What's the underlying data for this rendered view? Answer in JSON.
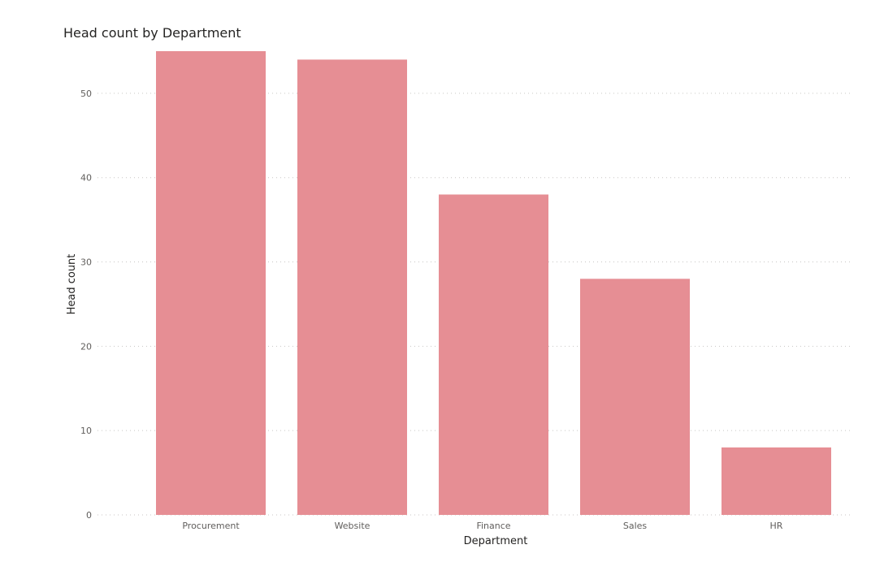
{
  "chart_data": {
    "type": "bar",
    "title": "Head count by Department",
    "xlabel": "Department",
    "ylabel": "Head count",
    "categories": [
      "Procurement",
      "Website",
      "Finance",
      "Sales",
      "HR"
    ],
    "values": [
      55,
      54,
      38,
      28,
      8
    ],
    "ylim": [
      0,
      55
    ],
    "yticks": [
      0,
      10,
      20,
      30,
      40,
      50
    ],
    "grid": true,
    "legend": "none",
    "bar_color": "#e68e94"
  }
}
